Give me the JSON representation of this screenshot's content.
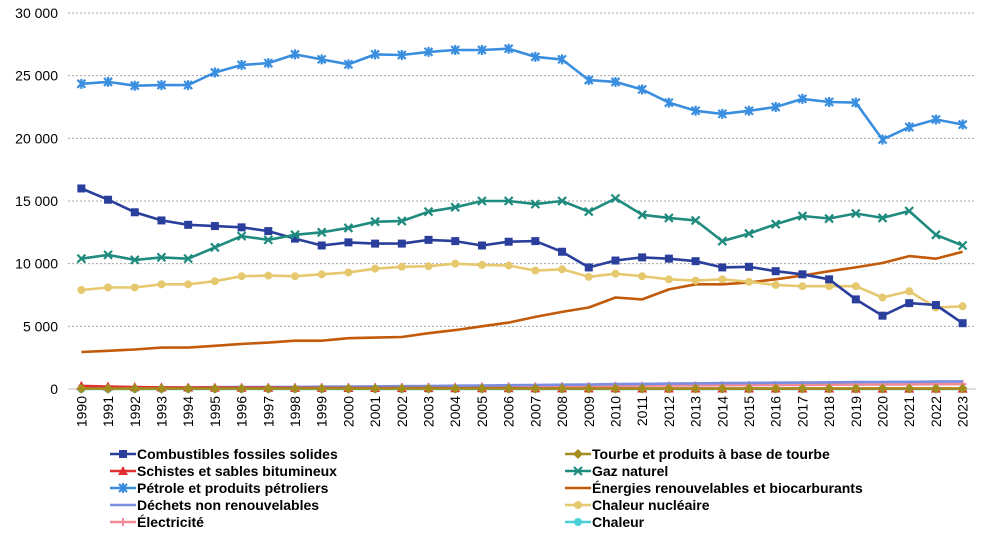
{
  "chart_data": {
    "type": "line",
    "title": "",
    "xlabel": "",
    "ylabel": "",
    "ylim": [
      0,
      30000
    ],
    "yticks": [
      "0",
      "5 000",
      "10 000",
      "15 000",
      "20 000",
      "25 000",
      "30 000"
    ],
    "grid": "horizontal dashed",
    "legend_position": "bottom",
    "x": [
      "1990",
      "1991",
      "1992",
      "1993",
      "1994",
      "1995",
      "1996",
      "1997",
      "1998",
      "1999",
      "2000",
      "2001",
      "2002",
      "2003",
      "2004",
      "2005",
      "2006",
      "2007",
      "2008",
      "2009",
      "2010",
      "2011",
      "2012",
      "2013",
      "2014",
      "2015",
      "2016",
      "2017",
      "2018",
      "2019",
      "2020",
      "2021",
      "2022",
      "2023"
    ],
    "series": [
      {
        "name": "Combustibles fossiles solides",
        "color": "#2a3f9c",
        "marker": "square",
        "values": [
          16000,
          15100,
          14100,
          13450,
          13100,
          13000,
          12900,
          12600,
          12000,
          11450,
          11700,
          11600,
          11600,
          11900,
          11800,
          11450,
          11750,
          11800,
          10950,
          9700,
          10250,
          10500,
          10400,
          10200,
          9700,
          9750,
          9400,
          9150,
          8750,
          7150,
          5850,
          6850,
          6700,
          5250
        ]
      },
      {
        "name": "Tourbe et produits à base de tourbe",
        "color": "#a38d1e",
        "marker": "diamond",
        "values": [
          30,
          30,
          30,
          30,
          30,
          30,
          30,
          30,
          30,
          30,
          30,
          30,
          30,
          30,
          30,
          30,
          30,
          30,
          30,
          30,
          30,
          30,
          30,
          30,
          30,
          30,
          30,
          30,
          30,
          30,
          30,
          30,
          30,
          30
        ]
      },
      {
        "name": "Schistes et sables bitumineux",
        "color": "#e03030",
        "marker": "triangle",
        "values": [
          250,
          200,
          150,
          130,
          120,
          110,
          100,
          100,
          90,
          90,
          80,
          80,
          70,
          70,
          60,
          60,
          60,
          50,
          50,
          50,
          50,
          40,
          40,
          40,
          40,
          40,
          40,
          40,
          40,
          30,
          30,
          30,
          30,
          30
        ]
      },
      {
        "name": "Gaz naturel",
        "color": "#1f8a7e",
        "marker": "xmark",
        "values": [
          10400,
          10700,
          10300,
          10500,
          10400,
          11300,
          12200,
          11900,
          12300,
          12500,
          12850,
          13350,
          13400,
          14150,
          14500,
          15000,
          15000,
          14750,
          15000,
          14150,
          15200,
          13900,
          13650,
          13450,
          11800,
          12400,
          13150,
          13800,
          13600,
          14000,
          13650,
          14200,
          12300,
          11450
        ]
      },
      {
        "name": "Pétrole et produits pétroliers",
        "color": "#3a8ee0",
        "marker": "star",
        "values": [
          24350,
          24500,
          24200,
          24250,
          24250,
          25250,
          25850,
          26000,
          26700,
          26300,
          25900,
          26700,
          26650,
          26900,
          27050,
          27050,
          27150,
          26500,
          26300,
          24650,
          24500,
          23900,
          22850,
          22200,
          21950,
          22200,
          22500,
          23150,
          22900,
          22850,
          19900,
          20900,
          21500,
          21100
        ]
      },
      {
        "name": "Énergies renouvelables et biocarburants",
        "color": "#c25a0a",
        "marker": "none",
        "values": [
          2950,
          3050,
          3150,
          3300,
          3300,
          3450,
          3600,
          3700,
          3850,
          3850,
          4050,
          4100,
          4150,
          4450,
          4700,
          5000,
          5300,
          5750,
          6150,
          6500,
          7300,
          7150,
          7950,
          8350,
          8350,
          8500,
          8750,
          9050,
          9400,
          9700,
          10050,
          10600,
          10400,
          10950
        ]
      },
      {
        "name": "Déchets non renouvelables",
        "color": "#7a8ee0",
        "marker": "none",
        "values": [
          80,
          90,
          100,
          110,
          120,
          140,
          150,
          160,
          170,
          180,
          200,
          210,
          220,
          240,
          260,
          280,
          300,
          320,
          340,
          360,
          390,
          410,
          430,
          450,
          470,
          490,
          500,
          510,
          530,
          550,
          560,
          570,
          590,
          610
        ]
      },
      {
        "name": "Chaleur nucléaire",
        "color": "#e6c86e",
        "marker": "circle",
        "values": [
          7900,
          8100,
          8100,
          8350,
          8350,
          8600,
          9000,
          9050,
          9000,
          9150,
          9300,
          9600,
          9750,
          9800,
          10000,
          9900,
          9850,
          9450,
          9550,
          8950,
          9200,
          9000,
          8750,
          8650,
          8750,
          8550,
          8300,
          8200,
          8200,
          8200,
          7300,
          7800,
          6500,
          6600
        ]
      },
      {
        "name": "Électricité",
        "color": "#f08a96",
        "marker": "plus",
        "values": [
          50,
          60,
          60,
          70,
          80,
          90,
          100,
          110,
          120,
          130,
          140,
          150,
          160,
          170,
          180,
          200,
          210,
          220,
          230,
          240,
          260,
          270,
          280,
          290,
          300,
          310,
          320,
          330,
          340,
          350,
          360,
          370,
          380,
          390
        ]
      },
      {
        "name": "Chaleur",
        "color": "#48d0d8",
        "marker": "circle",
        "values": [
          0,
          0,
          0,
          0,
          0,
          0,
          0,
          0,
          0,
          0,
          0,
          0,
          0,
          0,
          0,
          0,
          0,
          0,
          0,
          0,
          0,
          0,
          0,
          0,
          0,
          0,
          0,
          0,
          0,
          0,
          0,
          0,
          0,
          0
        ]
      }
    ]
  }
}
